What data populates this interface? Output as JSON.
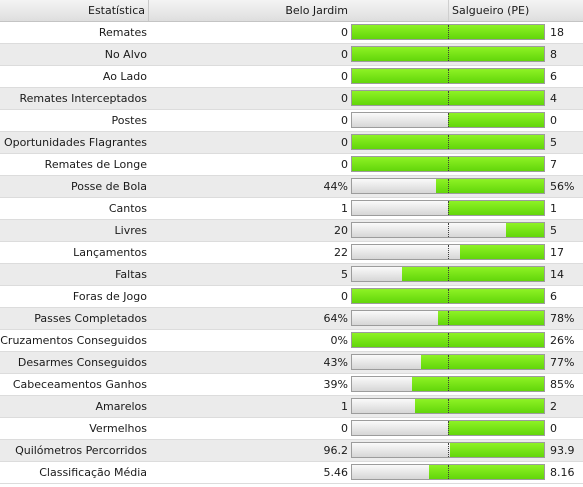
{
  "header": {
    "stat_label": "Estatística",
    "team_a": "Belo Jardim",
    "team_b": "Salgueiro (PE)"
  },
  "colors": {
    "fill": "#6ad811",
    "empty": "#e8e8e8"
  },
  "stats": [
    {
      "label": "Remates",
      "a": "0",
      "b": "18",
      "share_b": 1.0
    },
    {
      "label": "No Alvo",
      "a": "0",
      "b": "8",
      "share_b": 1.0
    },
    {
      "label": "Ao Lado",
      "a": "0",
      "b": "6",
      "share_b": 1.0
    },
    {
      "label": "Remates Interceptados",
      "a": "0",
      "b": "4",
      "share_b": 1.0
    },
    {
      "label": "Postes",
      "a": "0",
      "b": "0",
      "share_b": 0.5
    },
    {
      "label": "Oportunidades Flagrantes",
      "a": "0",
      "b": "5",
      "share_b": 1.0
    },
    {
      "label": "Remates de Longe",
      "a": "0",
      "b": "7",
      "share_b": 1.0
    },
    {
      "label": "Posse de Bola",
      "a": "44%",
      "b": "56%",
      "share_b": 0.56
    },
    {
      "label": "Cantos",
      "a": "1",
      "b": "1",
      "share_b": 0.5
    },
    {
      "label": "Livres",
      "a": "20",
      "b": "5",
      "share_b": 0.2
    },
    {
      "label": "Lançamentos",
      "a": "22",
      "b": "17",
      "share_b": 0.44
    },
    {
      "label": "Faltas",
      "a": "5",
      "b": "14",
      "share_b": 0.74
    },
    {
      "label": "Foras de Jogo",
      "a": "0",
      "b": "6",
      "share_b": 1.0
    },
    {
      "label": "Passes Completados",
      "a": "64%",
      "b": "78%",
      "share_b": 0.55
    },
    {
      "label": "Cruzamentos Conseguidos",
      "a": "0%",
      "b": "26%",
      "share_b": 1.0
    },
    {
      "label": "Desarmes Conseguidos",
      "a": "43%",
      "b": "77%",
      "share_b": 0.64
    },
    {
      "label": "Cabeceamentos Ganhos",
      "a": "39%",
      "b": "85%",
      "share_b": 0.69
    },
    {
      "label": "Amarelos",
      "a": "1",
      "b": "2",
      "share_b": 0.67
    },
    {
      "label": "Vermelhos",
      "a": "0",
      "b": "0",
      "share_b": 0.5
    },
    {
      "label": "Quilómetros Percorridos",
      "a": "96.2",
      "b": "93.9",
      "share_b": 0.49
    },
    {
      "label": "Classificação Média",
      "a": "5.46",
      "b": "8.16",
      "share_b": 0.6
    }
  ]
}
